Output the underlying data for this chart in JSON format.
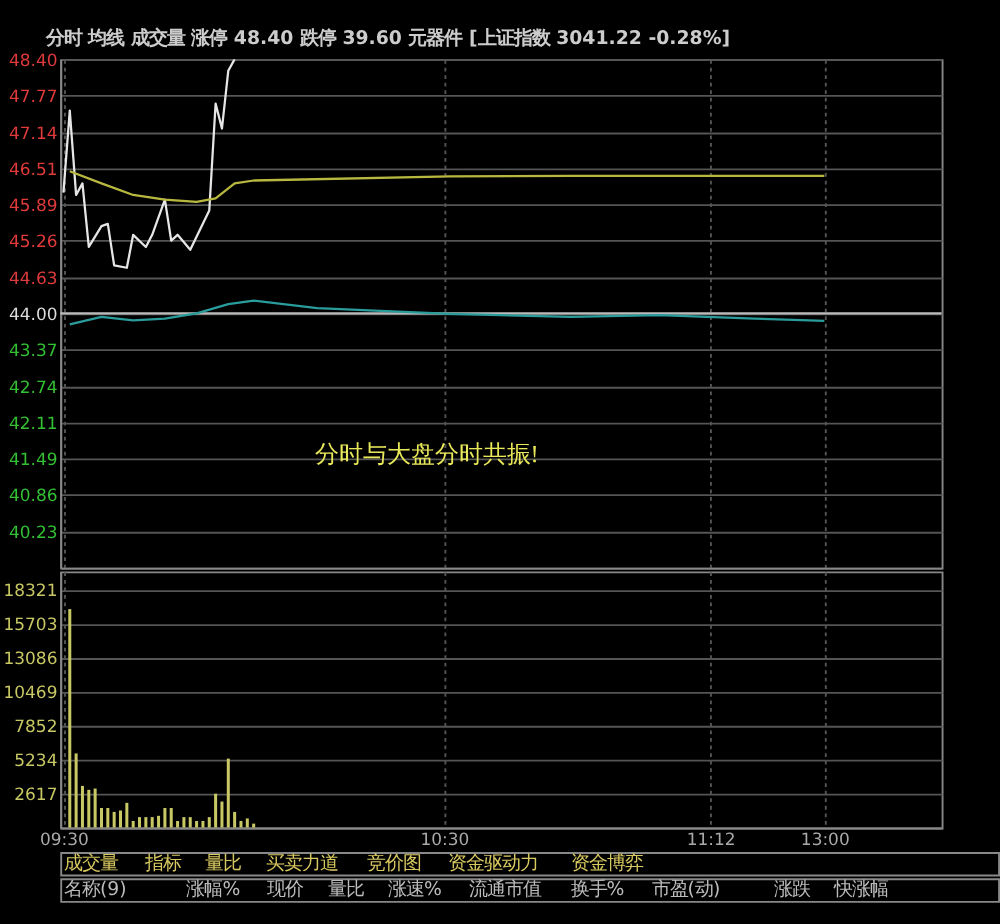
{
  "chart_data": [
    {
      "type": "line",
      "title": "分时 均线 成交量 涨停 48.40 跌停 39.60 元器件 [上证指数 3041.22 -0.28%]",
      "categories": [
        null,
        null,
        null,
        null,
        null,
        null,
        null,
        null,
        null,
        null,
        null,
        null,
        null,
        null,
        null,
        null,
        null,
        null,
        null,
        null,
        null,
        null,
        null,
        null,
        null,
        null,
        null,
        null,
        null,
        null,
        null,
        null,
        null,
        null,
        null,
        null,
        null,
        null,
        null,
        null,
        null,
        null,
        null,
        null,
        null,
        null,
        null,
        null,
        null,
        null,
        null,
        null,
        null,
        null,
        null,
        null,
        null,
        null,
        null,
        null,
        null,
        null,
        null,
        null,
        null,
        null,
        null,
        null,
        null,
        null,
        null,
        null,
        null,
        null,
        null,
        null,
        null,
        null,
        null,
        null,
        null,
        null,
        null,
        null,
        null,
        null,
        null,
        null,
        null,
        null,
        null,
        null,
        null,
        null,
        null,
        null,
        null,
        null,
        null,
        null,
        null,
        null,
        null,
        null,
        null,
        null,
        null,
        null,
        null,
        null,
        null,
        null,
        null,
        null,
        null,
        null,
        null,
        null,
        null,
        null,
        null,
        null,
        null,
        null,
        null,
        null,
        null,
        null,
        null,
        null,
        null,
        null,
        null,
        null,
        null,
        null,
        null,
        null,
        null
      ],
      "series": [
        {
          "color": "#e6e6e6",
          "values": [
            46.09,
            47.51,
            46.05,
            46.25,
            45.15,
            null,
            45.51,
            45.55,
            44.83,
            null,
            44.79,
            45.36,
            null,
            45.15,
            45.36,
            null,
            45.97,
            45.26,
            45.36,
            null,
            45.1,
            null,
            null,
            45.78,
            47.63,
            47.2,
            48.2,
            48.4,
            null,
            null,
            null,
            null,
            null,
            null,
            null,
            null,
            null,
            null,
            null,
            null,
            null,
            null,
            null,
            null,
            null,
            null,
            null,
            null,
            null,
            null,
            null,
            null,
            null,
            null,
            null,
            null,
            null,
            null,
            null,
            null,
            null,
            null,
            null,
            null,
            null,
            null,
            null,
            null,
            null,
            null,
            null,
            null,
            null,
            null,
            null,
            null,
            null,
            null,
            null,
            null,
            null,
            null,
            null,
            null,
            null,
            null,
            null,
            null,
            null,
            null,
            null,
            null,
            null,
            null,
            null,
            null,
            null,
            null,
            null,
            null,
            null,
            null,
            null,
            null,
            null,
            null,
            null,
            null,
            null,
            null,
            null,
            null,
            null,
            null,
            null,
            null,
            null,
            null,
            null,
            null,
            null,
            null,
            null,
            null,
            null,
            null,
            null,
            null,
            null,
            null,
            null,
            null,
            null,
            null,
            null,
            null,
            null,
            null,
            null
          ]
        },
        {
          "color": "#b8b840",
          "values": [
            null,
            46.46,
            null,
            null,
            null,
            null,
            46.25,
            null,
            null,
            null,
            null,
            46.05,
            null,
            null,
            null,
            null,
            45.97,
            null,
            null,
            null,
            null,
            45.93,
            null,
            null,
            45.99,
            null,
            null,
            46.25,
            null,
            null,
            46.3,
            null,
            null,
            null,
            null,
            null,
            null,
            null,
            null,
            null,
            null,
            null,
            null,
            null,
            null,
            null,
            null,
            null,
            null,
            null,
            null,
            null,
            null,
            null,
            null,
            null,
            null,
            null,
            null,
            null,
            null,
            46.37,
            null,
            null,
            null,
            null,
            null,
            null,
            null,
            null,
            null,
            null,
            null,
            null,
            null,
            null,
            null,
            null,
            null,
            null,
            46.38,
            null,
            null,
            null,
            null,
            null,
            null,
            null,
            null,
            null,
            null,
            null,
            null,
            null,
            null,
            null,
            null,
            null,
            null,
            null,
            null,
            null,
            null,
            null,
            null,
            null,
            null,
            null,
            null,
            null,
            null,
            null,
            null,
            null,
            null,
            null,
            null,
            null,
            null,
            null,
            46.38,
            null,
            null,
            null,
            null,
            null,
            null,
            null,
            null,
            null,
            null,
            null,
            null,
            null,
            null,
            null,
            null,
            null,
            null
          ]
        },
        {
          "color": "#2a9c9c",
          "values": [
            null,
            43.81,
            null,
            null,
            null,
            null,
            43.94,
            null,
            null,
            null,
            null,
            43.88,
            null,
            null,
            null,
            null,
            43.91,
            null,
            null,
            null,
            null,
            44.0,
            null,
            null,
            null,
            null,
            44.16,
            null,
            null,
            null,
            44.22,
            null,
            null,
            null,
            null,
            null,
            null,
            null,
            null,
            null,
            44.09,
            null,
            null,
            null,
            null,
            null,
            null,
            null,
            null,
            null,
            null,
            null,
            null,
            null,
            null,
            null,
            null,
            null,
            null,
            null,
            null,
            43.99,
            null,
            null,
            null,
            null,
            null,
            null,
            null,
            null,
            null,
            null,
            null,
            null,
            null,
            null,
            null,
            null,
            null,
            null,
            43.94,
            null,
            null,
            null,
            null,
            null,
            null,
            null,
            null,
            null,
            null,
            null,
            null,
            null,
            43.97,
            null,
            null,
            null,
            null,
            null,
            null,
            null,
            null,
            null,
            null,
            null,
            null,
            null,
            null,
            43.91,
            null,
            null,
            null,
            null,
            null,
            null,
            null,
            null,
            null,
            null,
            43.87,
            null,
            null,
            null,
            null,
            null,
            null,
            null,
            null,
            null,
            null,
            null,
            null,
            null,
            null,
            null,
            null,
            null,
            null
          ]
        }
      ],
      "ylim": [
        39.6,
        48.4
      ],
      "yticks": [
        {
          "value": 48.4,
          "label": "48.40"
        },
        47.77,
        47.14,
        46.51,
        45.89,
        45.26,
        44.63,
        {
          "value": 44.0,
          "label": "44.00"
        },
        43.37,
        42.74,
        42.11,
        41.49,
        40.86,
        40.23
      ],
      "ref_lines": [
        {
          "axis": "y",
          "value": 44.0,
          "color": "#bbbbbb"
        }
      ],
      "grid": true,
      "annotations": [
        "分时与大盘分时共振!"
      ]
    },
    {
      "type": "bar",
      "categories": [
        "09:30",
        null,
        null,
        null,
        null,
        null,
        null,
        null,
        null,
        null,
        null,
        null,
        null,
        null,
        null,
        null,
        null,
        null,
        null,
        null,
        null,
        null,
        null,
        null,
        null,
        null,
        null,
        null,
        null,
        null,
        null,
        null,
        null,
        null,
        null,
        null,
        null,
        null,
        null,
        null,
        null,
        null,
        null,
        null,
        null,
        null,
        null,
        null,
        null,
        null,
        null,
        null,
        null,
        null,
        null,
        null,
        null,
        null,
        null,
        null,
        "10:30",
        null,
        null,
        null,
        null,
        null,
        null,
        null,
        null,
        null,
        null,
        null,
        null,
        null,
        null,
        null,
        null,
        null,
        null,
        null,
        null,
        null,
        null,
        null,
        null,
        null,
        null,
        null,
        null,
        null,
        null,
        null,
        null,
        null,
        null,
        null,
        null,
        null,
        null,
        null,
        null,
        null,
        "11:12",
        null,
        null,
        null,
        null,
        null,
        null,
        null,
        null,
        null,
        null,
        null,
        null,
        null,
        null,
        null,
        null,
        null,
        "13:00",
        null,
        null,
        null,
        null,
        null,
        null,
        null,
        null,
        null,
        null,
        null,
        null,
        null,
        null,
        null,
        null,
        null,
        null
      ],
      "values": [
        null,
        16800,
        5700,
        3200,
        2900,
        3000,
        1500,
        1500,
        1200,
        1300,
        1900,
        500,
        800,
        800,
        800,
        900,
        1500,
        1500,
        500,
        800,
        800,
        500,
        500,
        800,
        2600,
        2000,
        5300,
        1200,
        500,
        700,
        300,
        null,
        null,
        null,
        null,
        null,
        null,
        null,
        null,
        null,
        null,
        null,
        null,
        null,
        null,
        null,
        null,
        null,
        null,
        null,
        null,
        null,
        null,
        null,
        null,
        null,
        null,
        null,
        null,
        null,
        null,
        null,
        null,
        null,
        null,
        null,
        null,
        null,
        null,
        null,
        null,
        null,
        null,
        null,
        null,
        null,
        null,
        null,
        null,
        null,
        null,
        null,
        null,
        null,
        null,
        null,
        null,
        null,
        null,
        null,
        null,
        null,
        null,
        null,
        null,
        null,
        null,
        null,
        null,
        null,
        null,
        null,
        null,
        null,
        null,
        null,
        null,
        null,
        null,
        null,
        null,
        null,
        null,
        null,
        null,
        null,
        null,
        null,
        null,
        null,
        null,
        null,
        null,
        null,
        null,
        null,
        null,
        null,
        null,
        null,
        null,
        null,
        null,
        null,
        null,
        null,
        null,
        null,
        null
      ],
      "color": "#c8c864",
      "ylim": [
        0,
        19700
      ],
      "yticks": [
        2617,
        5234,
        7852,
        10469,
        13086,
        15703,
        18321
      ],
      "grid": true,
      "annotations": [
        "成交量",
        "指标",
        "量比",
        "买卖力道",
        "竞价图",
        "资金驱动力",
        "资金博弈"
      ]
    },
    {
      "type": "other",
      "annotations": [
        "名称(9)",
        "涨幅%",
        "现价",
        "量比",
        "涨速%",
        "流通市值",
        "换手%",
        "市盈(动)",
        "涨跌",
        "快涨幅"
      ]
    }
  ]
}
